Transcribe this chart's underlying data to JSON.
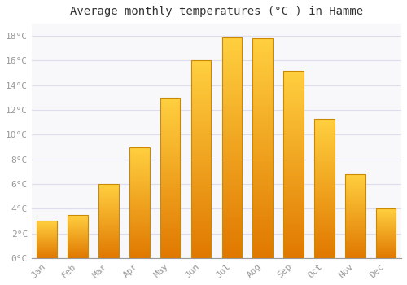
{
  "title": "Average monthly temperatures (°C ) in Hamme",
  "months": [
    "Jan",
    "Feb",
    "Mar",
    "Apr",
    "May",
    "Jun",
    "Jul",
    "Aug",
    "Sep",
    "Oct",
    "Nov",
    "Dec"
  ],
  "values": [
    3.0,
    3.5,
    6.0,
    9.0,
    13.0,
    16.0,
    17.9,
    17.8,
    15.2,
    11.3,
    6.8,
    4.0
  ],
  "bar_color_bottom": "#E07800",
  "bar_color_top": "#FFD040",
  "bar_edge_color": "#CC8800",
  "background_color": "#FFFFFF",
  "plot_bg_color": "#F8F8FA",
  "grid_color": "#DDDDEE",
  "ylim": [
    0,
    19
  ],
  "yticks": [
    0,
    2,
    4,
    6,
    8,
    10,
    12,
    14,
    16,
    18
  ],
  "title_fontsize": 10,
  "tick_fontsize": 8,
  "title_font": "monospace",
  "tick_font": "monospace",
  "tick_color": "#999999"
}
